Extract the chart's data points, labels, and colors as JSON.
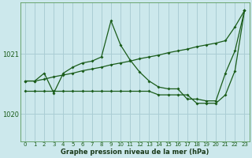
{
  "background_color": "#cce8ec",
  "grid_color": "#aacdd4",
  "line_color": "#1a5c1a",
  "xlabel": "Graphe pression niveau de la mer (hPa)",
  "xlim": [
    -0.5,
    23.5
  ],
  "ylim": [
    1019.55,
    1021.85
  ],
  "yticks": [
    1020,
    1021
  ],
  "xticks": [
    0,
    1,
    2,
    3,
    4,
    5,
    6,
    7,
    8,
    9,
    10,
    11,
    12,
    13,
    14,
    15,
    16,
    17,
    18,
    19,
    20,
    21,
    22,
    23
  ],
  "series": [
    {
      "x": [
        0,
        1,
        2,
        3,
        4,
        5,
        6,
        7,
        8,
        9,
        10,
        11,
        12,
        13,
        14,
        15,
        16,
        17,
        18,
        19,
        20,
        21,
        22,
        23
      ],
      "y": [
        1020.55,
        1020.55,
        1020.58,
        1020.62,
        1020.65,
        1020.68,
        1020.72,
        1020.75,
        1020.78,
        1020.82,
        1020.85,
        1020.88,
        1020.92,
        1020.95,
        1020.98,
        1021.02,
        1021.05,
        1021.08,
        1021.12,
        1021.15,
        1021.18,
        1021.22,
        1021.45,
        1021.72
      ]
    },
    {
      "x": [
        0,
        1,
        2,
        3,
        4,
        5,
        6,
        7,
        8,
        9,
        10,
        11,
        12,
        13,
        14,
        15,
        16,
        17,
        18,
        19,
        20,
        21,
        22,
        23
      ],
      "y": [
        1020.55,
        1020.55,
        1020.68,
        1020.35,
        1020.68,
        1020.78,
        1020.85,
        1020.88,
        1020.95,
        1021.55,
        1021.15,
        1020.9,
        1020.7,
        1020.55,
        1020.45,
        1020.42,
        1020.42,
        1020.25,
        1020.25,
        1020.22,
        1020.22,
        1020.68,
        1021.05,
        1021.72
      ]
    },
    {
      "x": [
        0,
        1,
        2,
        3,
        4,
        5,
        6,
        7,
        8,
        9,
        10,
        11,
        12,
        13,
        14,
        15,
        16,
        17,
        18,
        19,
        20,
        21,
        22,
        23
      ],
      "y": [
        1020.38,
        1020.38,
        1020.38,
        1020.38,
        1020.38,
        1020.38,
        1020.38,
        1020.38,
        1020.38,
        1020.38,
        1020.38,
        1020.38,
        1020.38,
        1020.38,
        1020.32,
        1020.32,
        1020.32,
        1020.32,
        1020.18,
        1020.18,
        1020.18,
        1020.32,
        1020.72,
        1021.72
      ]
    }
  ]
}
